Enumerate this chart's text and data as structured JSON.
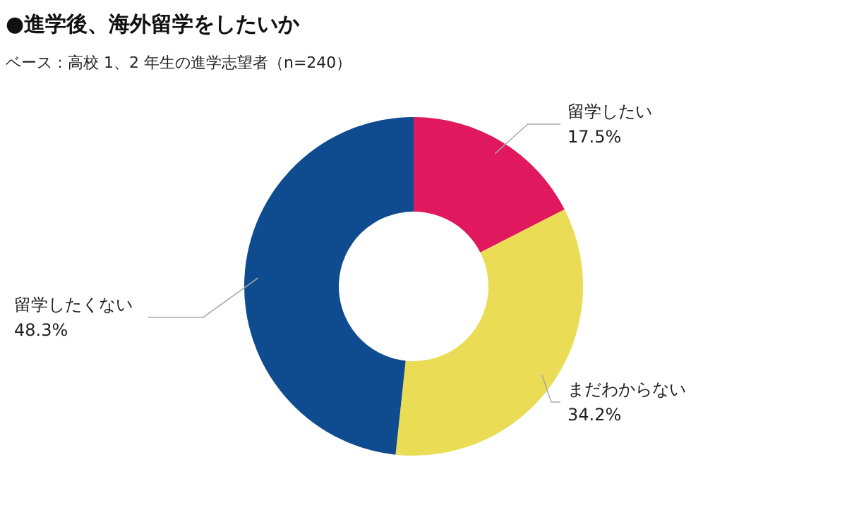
{
  "chart_data": {
    "type": "donut",
    "title": "●進学後、海外留学をしたいか",
    "subtitle": "ベース：高校 1、2 年生の進学志望者（n=240）",
    "categories": [
      "留学したい",
      "まだわからない",
      "留学したくない"
    ],
    "values": [
      17.5,
      34.2,
      48.3
    ],
    "colors": [
      "#e0195e",
      "#ebdc55",
      "#0f4c8f"
    ],
    "value_labels": [
      "17.5%",
      "34.2%",
      "48.3%"
    ]
  }
}
